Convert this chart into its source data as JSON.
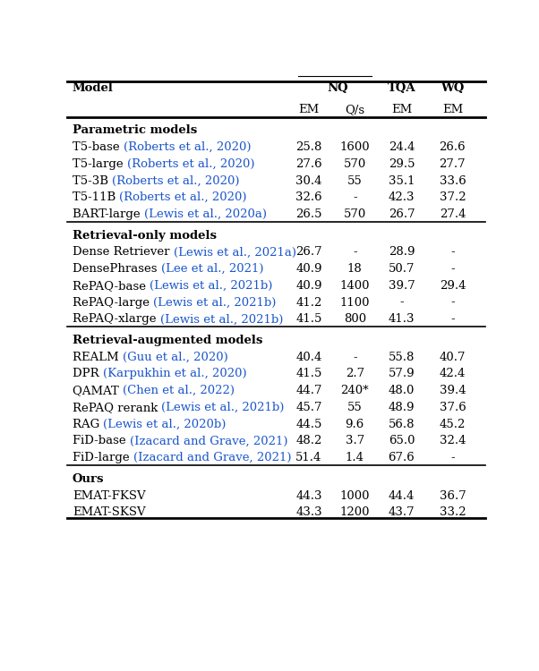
{
  "figsize": [
    6.02,
    7.5
  ],
  "dpi": 100,
  "sections": [
    {
      "section_title": "Parametric models",
      "rows": [
        {
          "model_plain": "T5-base ",
          "model_cite": "(Roberts et al., 2020)",
          "em": "25.8",
          "qs": "1600",
          "tqa": "24.4",
          "wq": "26.6"
        },
        {
          "model_plain": "T5-large ",
          "model_cite": "(Roberts et al., 2020)",
          "em": "27.6",
          "qs": "570",
          "tqa": "29.5",
          "wq": "27.7"
        },
        {
          "model_plain": "T5-3B ",
          "model_cite": "(Roberts et al., 2020)",
          "em": "30.4",
          "qs": "55",
          "tqa": "35.1",
          "wq": "33.6"
        },
        {
          "model_plain": "T5-11B ",
          "model_cite": "(Roberts et al., 2020)",
          "em": "32.6",
          "qs": "-",
          "tqa": "42.3",
          "wq": "37.2"
        },
        {
          "model_plain": "BART-large ",
          "model_cite": "(Lewis et al., 2020a)",
          "em": "26.5",
          "qs": "570",
          "tqa": "26.7",
          "wq": "27.4"
        }
      ]
    },
    {
      "section_title": "Retrieval-only models",
      "rows": [
        {
          "model_plain": "Dense Retriever ",
          "model_cite": "(Lewis et al., 2021a)",
          "em": "26.7",
          "qs": "-",
          "tqa": "28.9",
          "wq": "-"
        },
        {
          "model_plain": "DensePhrases ",
          "model_cite": "(Lee et al., 2021)",
          "em": "40.9",
          "qs": "18",
          "tqa": "50.7",
          "wq": "-"
        },
        {
          "model_plain": "RePAQ-base ",
          "model_cite": "(Lewis et al., 2021b)",
          "em": "40.9",
          "qs": "1400",
          "tqa": "39.7",
          "wq": "29.4"
        },
        {
          "model_plain": "RePAQ-large ",
          "model_cite": "(Lewis et al., 2021b)",
          "em": "41.2",
          "qs": "1100",
          "tqa": "-",
          "wq": "-"
        },
        {
          "model_plain": "RePAQ-xlarge ",
          "model_cite": "(Lewis et al., 2021b)",
          "em": "41.5",
          "qs": "800",
          "tqa": "41.3",
          "wq": "-"
        }
      ]
    },
    {
      "section_title": "Retrieval-augmented models",
      "rows": [
        {
          "model_plain": "REALM ",
          "model_cite": "(Guu et al., 2020)",
          "em": "40.4",
          "qs": "-",
          "tqa": "55.8",
          "wq": "40.7"
        },
        {
          "model_plain": "DPR ",
          "model_cite": "(Karpukhin et al., 2020)",
          "em": "41.5",
          "qs": "2.7",
          "tqa": "57.9",
          "wq": "42.4"
        },
        {
          "model_plain": "QAMAT ",
          "model_cite": "(Chen et al., 2022)",
          "em": "44.7",
          "qs": "240*",
          "tqa": "48.0",
          "wq": "39.4"
        },
        {
          "model_plain": "RePAQ rerank ",
          "model_cite": "(Lewis et al., 2021b)",
          "em": "45.7",
          "qs": "55",
          "tqa": "48.9",
          "wq": "37.6"
        },
        {
          "model_plain": "RAG ",
          "model_cite": "(Lewis et al., 2020b)",
          "em": "44.5",
          "qs": "9.6",
          "tqa": "56.8",
          "wq": "45.2"
        },
        {
          "model_plain": "FiD-base ",
          "model_cite": "(Izacard and Grave, 2021)",
          "em": "48.2",
          "qs": "3.7",
          "tqa": "65.0",
          "wq": "32.4"
        },
        {
          "model_plain": "FiD-large ",
          "model_cite": "(Izacard and Grave, 2021)",
          "em": "51.4",
          "qs": "1.4",
          "tqa": "67.6",
          "wq": "-"
        }
      ]
    },
    {
      "section_title": "Ours",
      "rows": [
        {
          "model_plain": "EMAT-FKSV",
          "model_cite": "",
          "em": "44.3",
          "qs": "1000",
          "tqa": "44.4",
          "wq": "36.7"
        },
        {
          "model_plain": "EMAT-SKSV",
          "model_cite": "",
          "em": "43.3",
          "qs": "1200",
          "tqa": "43.7",
          "wq": "33.2"
        }
      ]
    }
  ],
  "cite_color": "#1a56cc",
  "plain_color": "#000000",
  "bg_color": "#ffffff",
  "col_model": 0.012,
  "col_em": 0.578,
  "col_qs": 0.688,
  "col_tqa": 0.8,
  "col_wq": 0.922,
  "font_size": 9.5,
  "header_font_size": 9.5
}
